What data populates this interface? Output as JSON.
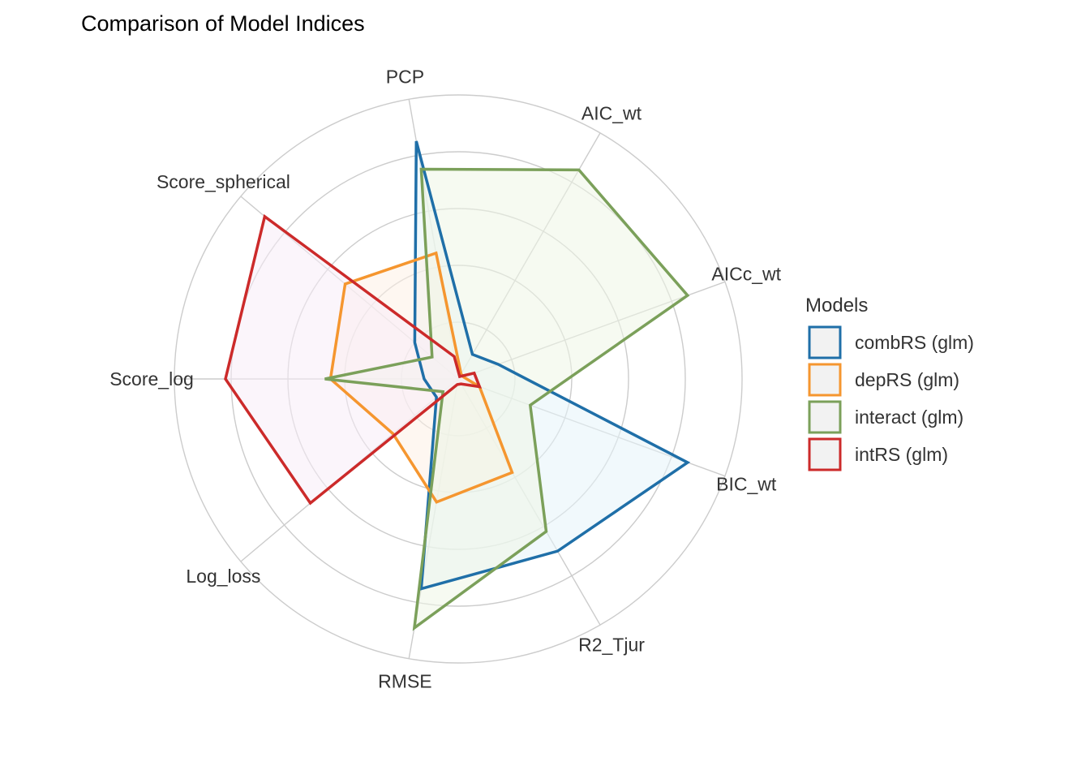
{
  "chart_data": {
    "type": "radar",
    "title": "Comparison of Model Indices",
    "axes": [
      "PCP",
      "AIC_wt",
      "AICc_wt",
      "BIC_wt",
      "R2_Tjur",
      "RMSE",
      "Log_loss",
      "Score_log",
      "Score_spherical"
    ],
    "rlim": [
      0,
      1
    ],
    "grid": true,
    "legend_position": "right",
    "legend_title": "Models",
    "series": [
      {
        "name": "combRS (glm)",
        "color": "#1F6FA8",
        "fill": "#E6F4FA",
        "values": [
          0.85,
          0.1,
          0.15,
          0.86,
          0.7,
          0.75,
          0.1,
          0.12,
          0.2
        ]
      },
      {
        "name": "depRS (glm)",
        "color": "#F5962F",
        "fill": "#FDF0E6",
        "values": [
          0.45,
          0.02,
          0.02,
          0.08,
          0.38,
          0.44,
          0.3,
          0.45,
          0.52
        ]
      },
      {
        "name": "interact (glm)",
        "color": "#7BA05A",
        "fill": "#EEF5E6",
        "values": [
          0.75,
          0.85,
          0.86,
          0.27,
          0.62,
          0.89,
          0.07,
          0.47,
          0.12
        ]
      },
      {
        "name": "intRS (glm)",
        "color": "#CC2A2A",
        "fill": "#F7EDF7",
        "values": [
          0.08,
          0.01,
          0.06,
          0.08,
          0.02,
          0.02,
          0.68,
          0.82,
          0.89
        ]
      }
    ]
  }
}
